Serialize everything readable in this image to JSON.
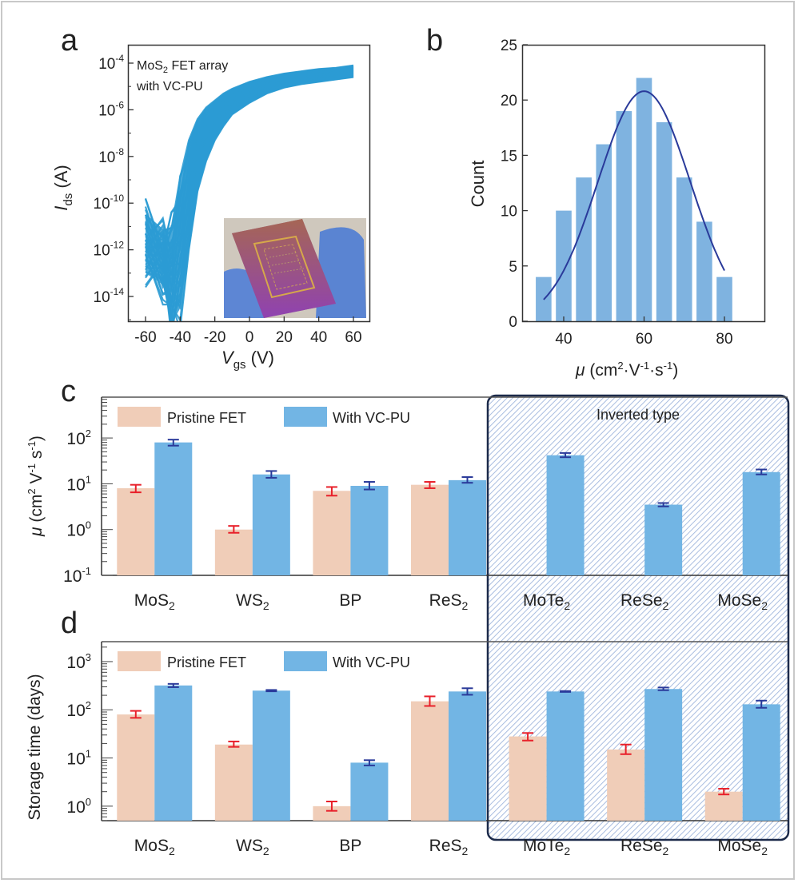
{
  "figure": {
    "panel_labels": [
      "a",
      "b",
      "c",
      "d"
    ]
  },
  "colors": {
    "transfer_curves": "#2b9bd3",
    "hist_bars": "#7fb3e0",
    "gauss_fit": "#2a3a9a",
    "pristine": "#f0cdb8",
    "with_vcpu": "#72b5e4",
    "pristine_err": "#e8202a",
    "vcpu_err": "#2a3a9a",
    "inverted_frame": "#1c2a4a",
    "inverted_hatch": "#a9bde0"
  },
  "chart_data": [
    {
      "id": "a",
      "type": "line",
      "title": "",
      "annotation_lines": [
        "MoS2 FET array",
        "with VC-PU"
      ],
      "xlabel": "Vgs (V)",
      "ylabel": "Ids (A)",
      "xlim": [
        -67,
        68
      ],
      "ylim_log10": [
        -15.3,
        -3.6
      ],
      "x_ticks": [
        "-60",
        "-40",
        "-20",
        "0",
        "20",
        "40",
        "60"
      ],
      "x_tick_values": [
        -60,
        -40,
        -20,
        0,
        20,
        40,
        60
      ],
      "y_ticks": [
        "10^-4",
        "10^-6",
        "10^-8",
        "10^-10",
        "10^-12",
        "10^-14"
      ],
      "y_tick_values_log10": [
        -4,
        -6,
        -8,
        -10,
        -12,
        -14
      ],
      "series_description": "Ensemble of transfer curves (many devices), log current rising from ~1e-11..1e-15 A at -60 V through turn-on near -40 V to ~3e-5..1e-4 A at 60 V",
      "envelope": {
        "x": [
          -60,
          -50,
          -45,
          -40,
          -35,
          -30,
          -25,
          -20,
          -15,
          -10,
          0,
          10,
          20,
          30,
          40,
          50,
          60
        ],
        "upper_log10": [
          -10.5,
          -11.2,
          -11.0,
          -9.0,
          -7.3,
          -6.4,
          -5.9,
          -5.6,
          -5.3,
          -5.1,
          -4.8,
          -4.6,
          -4.45,
          -4.35,
          -4.25,
          -4.2,
          -4.1
        ],
        "lower_log10": [
          -13.0,
          -13.5,
          -15.2,
          -14.5,
          -12.0,
          -9.5,
          -8.2,
          -7.3,
          -6.7,
          -6.2,
          -5.7,
          -5.3,
          -5.05,
          -4.9,
          -4.8,
          -4.7,
          -4.6
        ]
      },
      "inset": "Photo of flexible MoS2 FET array on purple substrate held by gloved fingers"
    },
    {
      "id": "b",
      "type": "bar",
      "title": "",
      "xlabel": "μ (cm²·V⁻¹·s⁻¹)",
      "ylabel": "Count",
      "categories": [
        35,
        40,
        45,
        50,
        55,
        60,
        65,
        70,
        75,
        80
      ],
      "values": [
        4,
        10,
        13,
        16,
        19,
        22,
        18,
        13,
        9,
        4
      ],
      "bin_width": 5,
      "xlim": [
        30,
        90
      ],
      "ylim": [
        0,
        25
      ],
      "x_ticks": [
        "40",
        "60",
        "80"
      ],
      "x_tick_values": [
        40,
        60,
        80
      ],
      "y_ticks": [
        "0",
        "5",
        "10",
        "15",
        "20",
        "25"
      ],
      "y_tick_values": [
        0,
        5,
        10,
        15,
        20,
        25
      ],
      "fit": {
        "type": "gaussian",
        "center": 60,
        "amplitude": 20.8,
        "sigma": 11.5,
        "x_range": [
          35,
          80
        ]
      }
    },
    {
      "id": "c",
      "type": "bar",
      "title": "",
      "ylabel": "μ (cm² V⁻¹ s⁻¹)",
      "xlabel": "",
      "yscale": "log",
      "ylim": [
        0.1,
        800
      ],
      "y_ticks": [
        "10^-1",
        "10^0",
        "10^1",
        "10^2"
      ],
      "y_tick_values_log10": [
        -1,
        0,
        1,
        2
      ],
      "categories": [
        "MoS2",
        "WS2",
        "BP",
        "ReS2",
        "MoTe2",
        "ReSe2",
        "MoSe2"
      ],
      "legend": [
        "Pristine FET",
        "With VC-PU"
      ],
      "legend_position": "top-left",
      "region_annotation": {
        "label": "Inverted type",
        "categories": [
          "MoTe2",
          "ReSe2",
          "MoSe2"
        ]
      },
      "series": [
        {
          "name": "Pristine FET",
          "values": [
            8,
            1.0,
            7,
            9.5,
            null,
            null,
            null
          ],
          "err_low": [
            6.5,
            0.85,
            5.5,
            8,
            null,
            null,
            null
          ],
          "err_high": [
            9.5,
            1.2,
            8.5,
            11,
            null,
            null,
            null
          ]
        },
        {
          "name": "With VC-PU",
          "values": [
            80,
            16,
            9,
            12,
            42,
            3.5,
            18
          ],
          "err_low": [
            68,
            13.5,
            7.5,
            10.5,
            38,
            3.2,
            16
          ],
          "err_high": [
            92,
            19,
            11,
            14,
            47,
            3.8,
            20.5
          ]
        }
      ]
    },
    {
      "id": "d",
      "type": "bar",
      "title": "",
      "ylabel": "Storage time (days)",
      "xlabel": "",
      "yscale": "log",
      "ylim": [
        0.5,
        2500
      ],
      "y_ticks": [
        "10^0",
        "10^1",
        "10^2",
        "10^3"
      ],
      "y_tick_values_log10": [
        0,
        1,
        2,
        3
      ],
      "categories": [
        "MoS2",
        "WS2",
        "BP",
        "ReS2",
        "MoTe2",
        "ReSe2",
        "MoSe2"
      ],
      "legend": [
        "Pristine FET",
        "With VC-PU"
      ],
      "legend_position": "top-left",
      "region_annotation": {
        "label": "",
        "categories": [
          "MoTe2",
          "ReSe2",
          "MoSe2"
        ]
      },
      "series": [
        {
          "name": "Pristine FET",
          "values": [
            80,
            19,
            1.0,
            150,
            28,
            15,
            2.0
          ],
          "err_low": [
            68,
            17,
            0.8,
            120,
            23,
            12,
            1.75
          ],
          "err_high": [
            95,
            22,
            1.25,
            190,
            33,
            19,
            2.3
          ]
        },
        {
          "name": "With VC-PU",
          "values": [
            320,
            250,
            8,
            240,
            240,
            270,
            130
          ],
          "err_low": [
            295,
            242,
            7,
            205,
            235,
            255,
            110
          ],
          "err_high": [
            345,
            258,
            9,
            280,
            245,
            290,
            155
          ]
        }
      ]
    }
  ]
}
